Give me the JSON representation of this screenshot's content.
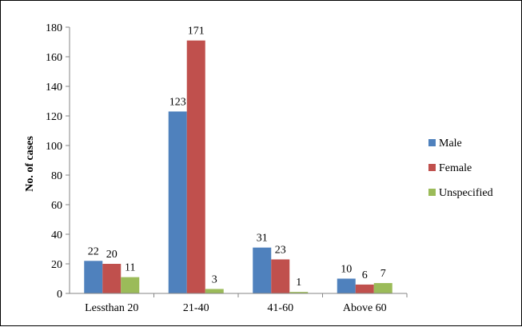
{
  "chart_data": {
    "type": "bar",
    "title": "",
    "xlabel": "",
    "ylabel": "No. of cases",
    "ylim": [
      0,
      180
    ],
    "yticks": [
      0,
      20,
      40,
      60,
      80,
      100,
      120,
      140,
      160,
      180
    ],
    "grid": false,
    "legend_position": "right",
    "categories": [
      "Lessthan 20",
      "21-40",
      "41-60",
      "Above 60"
    ],
    "series": [
      {
        "name": "Male",
        "color": "#4F81BD",
        "values": [
          22,
          123,
          31,
          10
        ]
      },
      {
        "name": "Female",
        "color": "#C0504D",
        "values": [
          20,
          171,
          23,
          6
        ]
      },
      {
        "name": "Unspecified",
        "color": "#9BBB59",
        "values": [
          11,
          3,
          1,
          7
        ]
      }
    ]
  }
}
